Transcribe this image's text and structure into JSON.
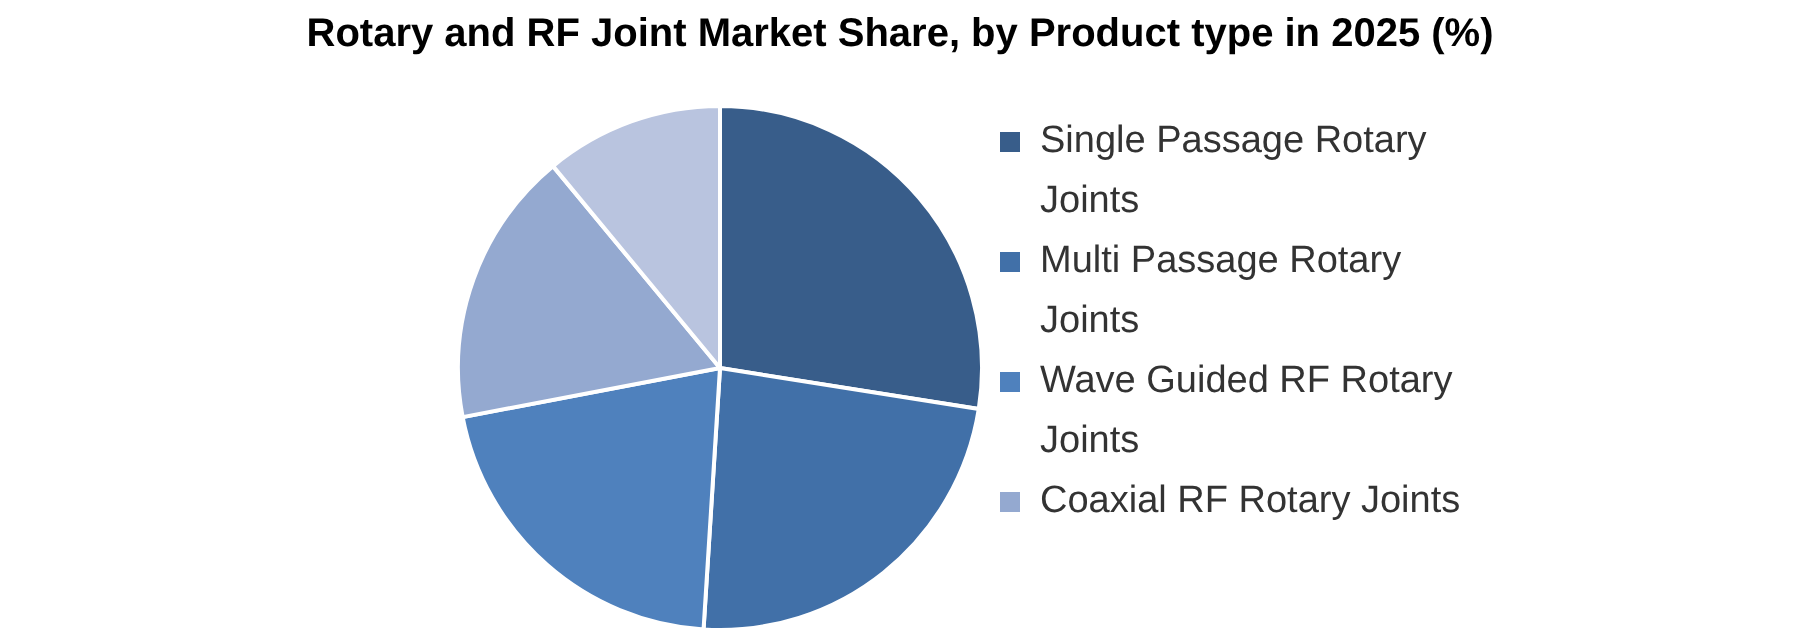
{
  "chart_data": {
    "type": "pie",
    "title": "Rotary and RF Joint Market Share, by Product type in 2025 (%)",
    "categories": [
      "Single Passage Rotary Joints",
      "Multi Passage Rotary Joints",
      "Wave Guided RF Rotary Joints",
      "Coaxial RF Rotary Joints",
      null
    ],
    "values": [
      27.5,
      23.5,
      21,
      17,
      11
    ],
    "colors": [
      "#385d8a",
      "#4170a8",
      "#4f81bd",
      "#94a9d0",
      "#b9c4df"
    ],
    "legend": "right"
  }
}
